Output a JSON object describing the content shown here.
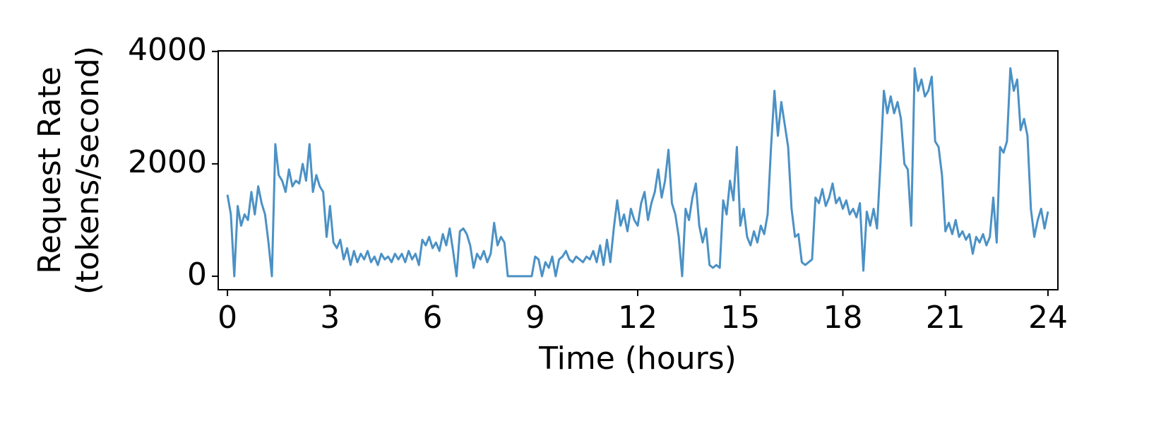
{
  "chart_data": {
    "type": "line",
    "xlabel": "Time (hours)",
    "ylabel": [
      "Request Rate",
      "(tokens/second)"
    ],
    "x": [
      0,
      0.1,
      0.2,
      0.3,
      0.4,
      0.5,
      0.6,
      0.7,
      0.8,
      0.9,
      1,
      1.1,
      1.2,
      1.3,
      1.4,
      1.5,
      1.6,
      1.7,
      1.8,
      1.9,
      2,
      2.1,
      2.2,
      2.3,
      2.4,
      2.5,
      2.6,
      2.7,
      2.8,
      2.9,
      3,
      3.1,
      3.2,
      3.3,
      3.4,
      3.5,
      3.6,
      3.7,
      3.8,
      3.9,
      4,
      4.1,
      4.2,
      4.3,
      4.4,
      4.5,
      4.6,
      4.7,
      4.8,
      4.9,
      5,
      5.1,
      5.2,
      5.3,
      5.4,
      5.5,
      5.6,
      5.7,
      5.8,
      5.9,
      6,
      6.1,
      6.2,
      6.3,
      6.4,
      6.5,
      6.6,
      6.7,
      6.8,
      6.9,
      7,
      7.1,
      7.2,
      7.3,
      7.4,
      7.5,
      7.6,
      7.7,
      7.8,
      7.9,
      8,
      8.1,
      8.2,
      8.3,
      8.4,
      8.5,
      8.6,
      8.7,
      8.8,
      8.9,
      9,
      9.1,
      9.2,
      9.3,
      9.4,
      9.5,
      9.6,
      9.7,
      9.8,
      9.9,
      10,
      10.1,
      10.2,
      10.3,
      10.4,
      10.5,
      10.6,
      10.7,
      10.8,
      10.9,
      11,
      11.1,
      11.2,
      11.3,
      11.4,
      11.5,
      11.6,
      11.7,
      11.8,
      11.9,
      12,
      12.1,
      12.2,
      12.3,
      12.4,
      12.5,
      12.6,
      12.7,
      12.8,
      12.9,
      13,
      13.1,
      13.2,
      13.3,
      13.4,
      13.5,
      13.6,
      13.7,
      13.8,
      13.9,
      14,
      14.1,
      14.2,
      14.3,
      14.4,
      14.5,
      14.6,
      14.7,
      14.8,
      14.9,
      15,
      15.1,
      15.2,
      15.3,
      15.4,
      15.5,
      15.6,
      15.7,
      15.8,
      15.9,
      16,
      16.1,
      16.2,
      16.3,
      16.4,
      16.5,
      16.6,
      16.7,
      16.8,
      16.9,
      17,
      17.1,
      17.2,
      17.3,
      17.4,
      17.5,
      17.6,
      17.7,
      17.8,
      17.9,
      18,
      18.1,
      18.2,
      18.3,
      18.4,
      18.5,
      18.6,
      18.7,
      18.8,
      18.9,
      19,
      19.1,
      19.2,
      19.3,
      19.4,
      19.5,
      19.6,
      19.7,
      19.8,
      19.9,
      20,
      20.1,
      20.2,
      20.3,
      20.4,
      20.5,
      20.6,
      20.7,
      20.8,
      20.9,
      21,
      21.1,
      21.2,
      21.3,
      21.4,
      21.5,
      21.6,
      21.7,
      21.8,
      21.9,
      22,
      22.1,
      22.2,
      22.3,
      22.4,
      22.5,
      22.6,
      22.7,
      22.8,
      22.9,
      23,
      23.1,
      23.2,
      23.3,
      23.4,
      23.5,
      23.6,
      23.7,
      23.8,
      23.9,
      24
    ],
    "series": [
      {
        "name": "Request Rate",
        "color": "#4b91c5",
        "values": [
          1450,
          1100,
          0,
          1250,
          900,
          1100,
          1000,
          1500,
          1100,
          1600,
          1300,
          1100,
          600,
          0,
          2350,
          1800,
          1700,
          1500,
          1900,
          1600,
          1700,
          1650,
          2000,
          1700,
          2350,
          1500,
          1800,
          1600,
          1500,
          700,
          1250,
          600,
          500,
          650,
          300,
          500,
          200,
          450,
          250,
          400,
          300,
          450,
          250,
          350,
          200,
          400,
          300,
          350,
          250,
          400,
          300,
          400,
          250,
          450,
          300,
          400,
          200,
          650,
          550,
          700,
          500,
          600,
          450,
          750,
          550,
          850,
          450,
          0,
          800,
          850,
          750,
          550,
          150,
          400,
          300,
          450,
          250,
          400,
          950,
          550,
          700,
          600,
          0,
          0,
          0,
          0,
          0,
          0,
          0,
          0,
          350,
          300,
          0,
          250,
          150,
          350,
          0,
          300,
          350,
          450,
          300,
          250,
          350,
          300,
          250,
          350,
          300,
          450,
          250,
          550,
          200,
          650,
          250,
          850,
          1350,
          900,
          1100,
          800,
          1200,
          1000,
          900,
          1300,
          1500,
          1000,
          1300,
          1500,
          1900,
          1400,
          1700,
          2250,
          1300,
          1100,
          700,
          0,
          1200,
          1000,
          1400,
          1650,
          900,
          600,
          850,
          200,
          150,
          200,
          150,
          1350,
          1100,
          1700,
          1350,
          2300,
          900,
          1200,
          700,
          550,
          800,
          600,
          900,
          750,
          1100,
          2300,
          3300,
          2500,
          3100,
          2700,
          2300,
          1200,
          700,
          750,
          250,
          200,
          250,
          300,
          1400,
          1300,
          1550,
          1250,
          1400,
          1650,
          1300,
          1400,
          1200,
          1350,
          1100,
          1200,
          1050,
          1300,
          100,
          1150,
          900,
          1200,
          850,
          2000,
          3300,
          2900,
          3200,
          2900,
          3100,
          2800,
          2000,
          1900,
          900,
          3700,
          3300,
          3500,
          3200,
          3300,
          3550,
          2400,
          2300,
          1800,
          800,
          950,
          750,
          1000,
          700,
          800,
          650,
          750,
          400,
          700,
          600,
          750,
          550,
          700,
          1400,
          600,
          2300,
          2200,
          2400,
          3700,
          3300,
          3500,
          2600,
          2800,
          2500,
          1200,
          700,
          1000,
          1200,
          850,
          1150
        ]
      }
    ],
    "xlim": [
      -0.27,
      24.29
    ],
    "xticks": [
      0,
      3,
      6,
      9,
      12,
      15,
      18,
      21,
      24
    ],
    "ylim": [
      -240,
      4010
    ],
    "yticks": [
      0,
      2000,
      4000
    ],
    "grid": false
  }
}
